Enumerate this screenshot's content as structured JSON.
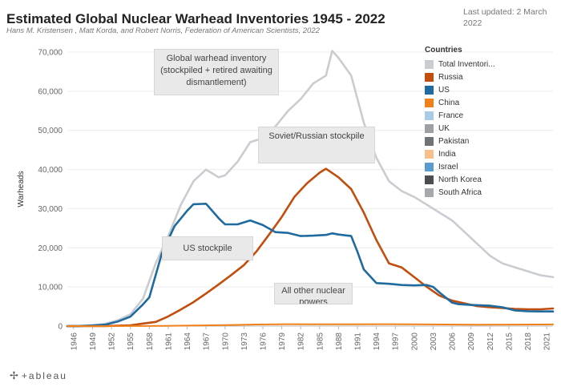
{
  "header": {
    "title": "Estimated Global Nuclear Warhead Inventories 1945 - 2022",
    "subtitle": "Hans M. Kristensen , Matt Korda, and Robert Norris, Federation of American Scientists, 2022",
    "updated": "Last updated: 2 March 2022"
  },
  "legend": {
    "title": "Countries",
    "items": [
      {
        "label": "Total Inventori...",
        "color": "#c9ccd1"
      },
      {
        "label": "Russia",
        "color": "#c24e0e"
      },
      {
        "label": "US",
        "color": "#1f6a9e"
      },
      {
        "label": "China",
        "color": "#f0801a"
      },
      {
        "label": "France",
        "color": "#a8cbe6"
      },
      {
        "label": "UK",
        "color": "#9c9fa3"
      },
      {
        "label": "Pakistan",
        "color": "#6e7377"
      },
      {
        "label": "India",
        "color": "#f7c08a"
      },
      {
        "label": "Israel",
        "color": "#5a9bcf"
      },
      {
        "label": "North Korea",
        "color": "#4a4e52"
      },
      {
        "label": "South Africa",
        "color": "#a5a9ad"
      }
    ]
  },
  "annotations": {
    "global": "Global warhead inventory (stockpiled + retired awaiting dismantlement)",
    "soviet": "Soviet/Russian stockpile",
    "us": "US stockpile",
    "other": "All other nuclear powers"
  },
  "footer": {
    "brand": "+ableau",
    "icon": "✢"
  },
  "chart_data": {
    "type": "line",
    "title": "Estimated Global Nuclear Warhead Inventories 1945 - 2022",
    "ylabel": "Warheads",
    "xlabel": "",
    "xlim": [
      1945,
      2022
    ],
    "ylim": [
      0,
      70000
    ],
    "yticks": [
      0,
      10000,
      20000,
      30000,
      40000,
      50000,
      60000,
      70000
    ],
    "ytick_labels": [
      "0",
      "10,000",
      "20,000",
      "30,000",
      "40,000",
      "50,000",
      "60,000",
      "70,000"
    ],
    "xticks": [
      1946,
      1949,
      1952,
      1955,
      1958,
      1961,
      1964,
      1967,
      1970,
      1973,
      1976,
      1979,
      1982,
      1985,
      1988,
      1991,
      1994,
      1997,
      2000,
      2003,
      2006,
      2009,
      2012,
      2015,
      2018,
      2021
    ],
    "grid": true,
    "series": [
      {
        "name": "Total Inventories",
        "color": "#c9ccd1",
        "x": [
          1945,
          1947,
          1949,
          1951,
          1953,
          1955,
          1957,
          1959,
          1961,
          1963,
          1965,
          1967,
          1969,
          1970,
          1972,
          1974,
          1976,
          1978,
          1980,
          1982,
          1984,
          1986,
          1987,
          1988,
          1990,
          1992,
          1994,
          1996,
          1998,
          2000,
          2002,
          2004,
          2006,
          2008,
          2010,
          2012,
          2014,
          2016,
          2018,
          2020,
          2022
        ],
        "y": [
          0,
          50,
          200,
          600,
          1500,
          3000,
          7000,
          16000,
          23000,
          31000,
          37000,
          40000,
          38000,
          38500,
          42000,
          47000,
          48000,
          51000,
          55000,
          58000,
          62000,
          64000,
          70300,
          68500,
          64000,
          52000,
          43000,
          37000,
          34500,
          33000,
          31000,
          29000,
          27000,
          24000,
          21000,
          18000,
          16000,
          15000,
          14000,
          13000,
          12500
        ]
      },
      {
        "name": "Russia",
        "color": "#c24e0e",
        "x": [
          1945,
          1949,
          1951,
          1955,
          1957,
          1959,
          1961,
          1963,
          1965,
          1967,
          1969,
          1971,
          1973,
          1975,
          1977,
          1979,
          1981,
          1983,
          1985,
          1986,
          1988,
          1990,
          1992,
          1994,
          1996,
          1998,
          2000,
          2002,
          2004,
          2006,
          2008,
          2010,
          2012,
          2014,
          2016,
          2018,
          2020,
          2022
        ],
        "y": [
          0,
          0,
          25,
          200,
          650,
          1060,
          2470,
          4240,
          6130,
          8340,
          10670,
          13060,
          15590,
          19100,
          23400,
          27900,
          33000,
          36500,
          39200,
          40200,
          38000,
          35000,
          29000,
          22000,
          16000,
          15000,
          12500,
          10000,
          7800,
          6500,
          5800,
          5100,
          4800,
          4600,
          4400,
          4300,
          4300,
          4500
        ]
      },
      {
        "name": "US",
        "color": "#1f6a9e",
        "x": [
          1945,
          1947,
          1949,
          1951,
          1953,
          1955,
          1957,
          1958,
          1960,
          1962,
          1964,
          1965,
          1967,
          1969,
          1970,
          1972,
          1974,
          1976,
          1978,
          1980,
          1982,
          1984,
          1986,
          1987,
          1988,
          1990,
          1991,
          1992,
          1994,
          1996,
          1998,
          2000,
          2002,
          2003,
          2004,
          2006,
          2007,
          2009,
          2012,
          2014,
          2016,
          2018,
          2020,
          2022
        ],
        "y": [
          0,
          13,
          170,
          369,
          1169,
          2422,
          5543,
          7345,
          18638,
          25540,
          29463,
          31139,
          31255,
          27552,
          26000,
          26000,
          27000,
          25800,
          24000,
          23800,
          23000,
          23100,
          23300,
          23700,
          23400,
          23000,
          19000,
          14500,
          11000,
          10800,
          10500,
          10400,
          10500,
          10000,
          8600,
          6000,
          5600,
          5400,
          5200,
          4800,
          4000,
          3800,
          3750,
          3750
        ]
      },
      {
        "name": "All other nuclear powers",
        "color": "#f0801a",
        "x": [
          1945,
          1955,
          1960,
          1965,
          1970,
          1975,
          1980,
          1985,
          1990,
          1995,
          2000,
          2005,
          2010,
          2015,
          2020,
          2022
        ],
        "y": [
          0,
          20,
          60,
          150,
          250,
          400,
          500,
          450,
          450,
          500,
          450,
          400,
          350,
          380,
          400,
          420
        ]
      }
    ]
  }
}
